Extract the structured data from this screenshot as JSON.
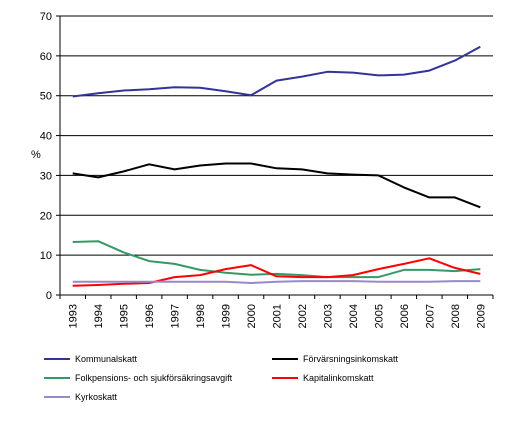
{
  "chart_data": {
    "type": "line",
    "title": "",
    "xlabel": "",
    "ylabel": "%",
    "ylim": [
      0,
      70
    ],
    "yticks": [
      0,
      10,
      20,
      30,
      40,
      50,
      60,
      70
    ],
    "grid": "horizontal",
    "legend_position": "bottom",
    "categories": [
      "1993",
      "1994",
      "1995",
      "1996",
      "1997",
      "1998",
      "1999",
      "2000",
      "2001",
      "2002",
      "2003",
      "2004",
      "2005",
      "2006",
      "2007",
      "2008",
      "2009"
    ],
    "series": [
      {
        "name": "Kommunalskatt",
        "color": "#33339a",
        "values": [
          49.8,
          50.6,
          51.3,
          51.6,
          52.1,
          52.0,
          51.1,
          50.1,
          53.8,
          54.8,
          56.0,
          55.8,
          55.1,
          55.3,
          56.3,
          58.8,
          62.3
        ]
      },
      {
        "name": "Förvärsningsinkomskatt",
        "color": "#000000",
        "values": [
          30.5,
          29.5,
          31.0,
          32.8,
          31.5,
          32.5,
          33.0,
          33.0,
          31.8,
          31.5,
          30.5,
          30.2,
          30.0,
          27.0,
          24.5,
          24.5,
          22.0
        ]
      },
      {
        "name": "Folkpensions- och sjukförsäkringsavgift",
        "color": "#339966",
        "values": [
          13.3,
          13.5,
          10.7,
          8.5,
          7.8,
          6.3,
          5.6,
          5.1,
          5.3,
          5.0,
          4.5,
          4.5,
          4.5,
          6.3,
          6.3,
          6.0,
          6.5
        ]
      },
      {
        "name": "Kapitalinkomskatt",
        "color": "#ff0000",
        "values": [
          2.3,
          2.5,
          2.8,
          3.0,
          4.5,
          5.0,
          6.5,
          7.5,
          4.7,
          4.5,
          4.5,
          5.0,
          6.5,
          7.8,
          9.2,
          6.8,
          5.3
        ]
      },
      {
        "name": "Kyrkoskatt",
        "color": "#9988cc",
        "values": [
          3.3,
          3.3,
          3.3,
          3.3,
          3.3,
          3.3,
          3.3,
          3.0,
          3.3,
          3.5,
          3.5,
          3.5,
          3.3,
          3.3,
          3.3,
          3.5,
          3.5
        ]
      }
    ]
  }
}
